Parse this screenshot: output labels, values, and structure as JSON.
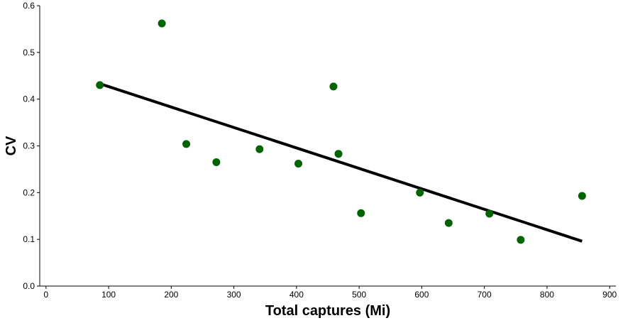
{
  "chart_data": {
    "type": "scatter",
    "title": "",
    "xlabel": "Total captures (Mi)",
    "ylabel": "CV",
    "xlim": [
      -10,
      910
    ],
    "ylim": [
      0,
      0.6
    ],
    "x_ticks": [
      0,
      100,
      200,
      300,
      400,
      500,
      600,
      700,
      800,
      900
    ],
    "y_ticks": [
      0.0,
      0.1,
      0.2,
      0.3,
      0.4,
      0.5,
      0.6
    ],
    "x_tick_labels": [
      "0",
      "100",
      "200",
      "300",
      "400",
      "500",
      "600",
      "700",
      "800",
      "900"
    ],
    "y_tick_labels": [
      "0.0",
      "0.1",
      "0.2",
      "0.3",
      "0.4",
      "0.5",
      "0.6"
    ],
    "grid": false,
    "legend": "none",
    "series": [
      {
        "type": "scatter",
        "color": "#006400",
        "points": [
          {
            "x": 86,
            "y": 0.43
          },
          {
            "x": 185,
            "y": 0.562
          },
          {
            "x": 224,
            "y": 0.304
          },
          {
            "x": 272,
            "y": 0.265
          },
          {
            "x": 341,
            "y": 0.293
          },
          {
            "x": 403,
            "y": 0.262
          },
          {
            "x": 459,
            "y": 0.427
          },
          {
            "x": 467,
            "y": 0.283
          },
          {
            "x": 503,
            "y": 0.156
          },
          {
            "x": 597,
            "y": 0.2
          },
          {
            "x": 643,
            "y": 0.135
          },
          {
            "x": 708,
            "y": 0.155
          },
          {
            "x": 758,
            "y": 0.099
          },
          {
            "x": 856,
            "y": 0.193
          }
        ]
      },
      {
        "type": "line",
        "color": "#000000",
        "points": [
          {
            "x": 86,
            "y": 0.433
          },
          {
            "x": 856,
            "y": 0.096
          }
        ]
      }
    ]
  }
}
